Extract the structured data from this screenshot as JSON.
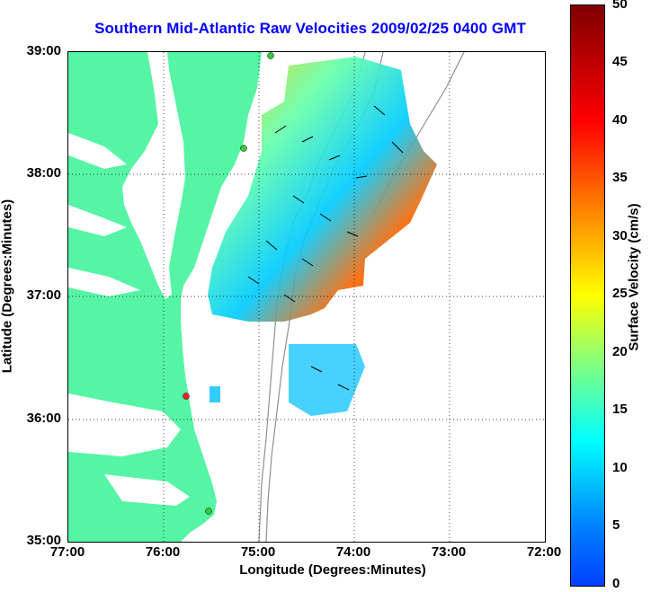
{
  "title": "Southern Mid-Atlantic Raw Velocities 2009/02/25 0400 GMT",
  "xlabel": "Longitude (Degrees:Minutes)",
  "ylabel": "Latitude (Degrees:Minutes)",
  "x_ticks": [
    "77:00",
    "76:00",
    "75:00",
    "74:00",
    "73:00",
    "72:00"
  ],
  "y_ticks": [
    "39:00",
    "38:00",
    "37:00",
    "36:00",
    "35:00"
  ],
  "colorbar": {
    "title": "Surface Velocity (cm/s)",
    "ticks": [
      "50",
      "45",
      "40",
      "35",
      "30",
      "25",
      "20",
      "15",
      "10",
      "5",
      "0"
    ],
    "range": [
      0,
      50
    ]
  },
  "colors": {
    "land": "#55f5a5",
    "title": "#0000ff",
    "bathymetry": "#909090",
    "station_green": "#33cc33",
    "station_red": "#ff2020"
  }
}
